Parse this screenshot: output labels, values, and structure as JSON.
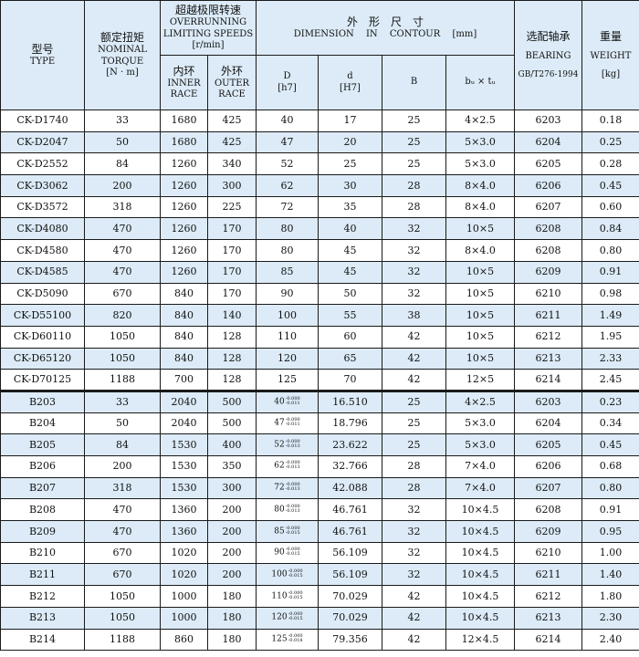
{
  "header": {
    "type_zh": "型号",
    "type_en": "TYPE",
    "torque_zh": "额定扭矩",
    "torque_en1": "NOMINAL",
    "torque_en2": "TORQUE",
    "torque_unit": "[N · m]",
    "speed_zh": "超越极限转速",
    "speed_en1": "OVERRUNNING",
    "speed_en2": "LIMITING SPEEDS",
    "speed_unit": "[r/min]",
    "inner_zh": "内环",
    "inner_en1": "INNER",
    "inner_en2": "RACE",
    "outer_zh": "外环",
    "outer_en1": "OUTER",
    "outer_en2": "RACE",
    "dim_zh": "外　形　尺　寸",
    "dim_en": "DIMENSION　 IN　 CONTOUR　 [mm]",
    "D": "D",
    "D_tol": "[h7]",
    "d": "d",
    "d_tol": "[H7]",
    "B": "B",
    "bt": "bᵤ × tᵤ",
    "bearing_zh": "选配轴承",
    "bearing_en": "BEARING",
    "bearing_std": "GB/T276-1994",
    "weight_zh": "重量",
    "weight_en": "WEIGHT",
    "weight_unit": "[kg]"
  },
  "ck_rows": [
    [
      "CK-D1740",
      "33",
      "1680",
      "425",
      "40",
      "17",
      "25",
      "4×2.5",
      "6203",
      "0.18"
    ],
    [
      "CK-D2047",
      "50",
      "1680",
      "425",
      "47",
      "20",
      "25",
      "5×3.0",
      "6204",
      "0.25"
    ],
    [
      "CK-D2552",
      "84",
      "1260",
      "340",
      "52",
      "25",
      "25",
      "5×3.0",
      "6205",
      "0.28"
    ],
    [
      "CK-D3062",
      "200",
      "1260",
      "300",
      "62",
      "30",
      "28",
      "8×4.0",
      "6206",
      "0.45"
    ],
    [
      "CK-D3572",
      "318",
      "1260",
      "225",
      "72",
      "35",
      "28",
      "8×4.0",
      "6207",
      "0.60"
    ],
    [
      "CK-D4080",
      "470",
      "1260",
      "170",
      "80",
      "40",
      "32",
      "10×5",
      "6208",
      "0.84"
    ],
    [
      "CK-D4580",
      "470",
      "1260",
      "170",
      "80",
      "45",
      "32",
      "8×4.0",
      "6208",
      "0.80"
    ],
    [
      "CK-D4585",
      "470",
      "1260",
      "170",
      "85",
      "45",
      "32",
      "10×5",
      "6209",
      "0.91"
    ],
    [
      "CK-D5090",
      "670",
      "840",
      "170",
      "90",
      "50",
      "32",
      "10×5",
      "6210",
      "0.98"
    ],
    [
      "CK-D55100",
      "820",
      "840",
      "140",
      "100",
      "55",
      "38",
      "10×5",
      "6211",
      "1.49"
    ],
    [
      "CK-D60110",
      "1050",
      "840",
      "128",
      "110",
      "60",
      "42",
      "10×5",
      "6212",
      "1.95"
    ],
    [
      "CK-D65120",
      "1050",
      "840",
      "128",
      "120",
      "65",
      "42",
      "10×5",
      "6213",
      "2.33"
    ],
    [
      "CK-D70125",
      "1188",
      "700",
      "128",
      "125",
      "70",
      "42",
      "12×5",
      "6214",
      "2.45"
    ]
  ],
  "b_rows": [
    [
      "B203",
      "33",
      "2040",
      "500",
      "40",
      "-0.000",
      "-0.011",
      "16.510",
      "25",
      "4×2.5",
      "6203",
      "0.23"
    ],
    [
      "B204",
      "50",
      "2040",
      "500",
      "47",
      "-0.000",
      "-0.011",
      "18.796",
      "25",
      "5×3.0",
      "6204",
      "0.34"
    ],
    [
      "B205",
      "84",
      "1530",
      "400",
      "52",
      "-0.000",
      "-0.013",
      "23.622",
      "25",
      "5×3.0",
      "6205",
      "0.45"
    ],
    [
      "B206",
      "200",
      "1530",
      "350",
      "62",
      "-0.000",
      "-0.013",
      "32.766",
      "28",
      "7×4.0",
      "6206",
      "0.68"
    ],
    [
      "B207",
      "318",
      "1530",
      "300",
      "72",
      "-0.000",
      "-0.013",
      "42.088",
      "28",
      "7×4.0",
      "6207",
      "0.80"
    ],
    [
      "B208",
      "470",
      "1360",
      "200",
      "80",
      "-0.000",
      "-0.013",
      "46.761",
      "32",
      "10×4.5",
      "6208",
      "0.91"
    ],
    [
      "B209",
      "470",
      "1360",
      "200",
      "85",
      "-0.000",
      "-0.015",
      "46.761",
      "32",
      "10×4.5",
      "6209",
      "0.95"
    ],
    [
      "B210",
      "670",
      "1020",
      "200",
      "90",
      "-0.000",
      "-0.015",
      "56.109",
      "32",
      "10×4.5",
      "6210",
      "1.00"
    ],
    [
      "B211",
      "670",
      "1020",
      "200",
      "100",
      "-0.000",
      "-0.015",
      "56.109",
      "32",
      "10×4.5",
      "6211",
      "1.40"
    ],
    [
      "B212",
      "1050",
      "1000",
      "180",
      "110",
      "-0.000",
      "-0.015",
      "70.029",
      "42",
      "10×4.5",
      "6212",
      "1.80"
    ],
    [
      "B213",
      "1050",
      "1000",
      "180",
      "120",
      "-0.000",
      "-0.015",
      "70.029",
      "42",
      "10×4.5",
      "6213",
      "2.30"
    ],
    [
      "B214",
      "1188",
      "860",
      "180",
      "125",
      "-0.000",
      "-0.018",
      "79.356",
      "42",
      "12×4.5",
      "6214",
      "2.40"
    ]
  ],
  "colors": {
    "header_bg": "#dcebf7",
    "band_bg": "#dcebf7",
    "border": "#1a1a1a"
  }
}
